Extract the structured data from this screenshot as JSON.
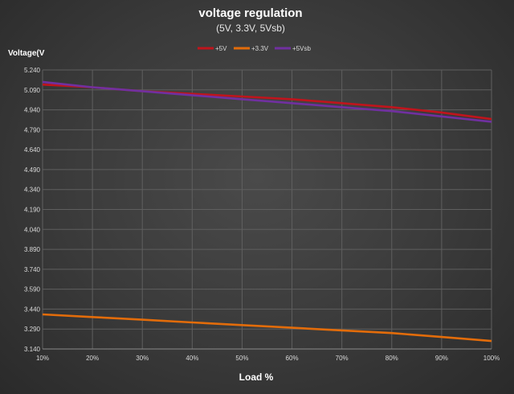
{
  "chart_data": {
    "type": "line",
    "title": "voltage regulation",
    "subtitle": "(5V, 3.3V, 5Vsb)",
    "ylabel": "Voltage(V",
    "xlabel": "Load %",
    "categories": [
      "10%",
      "20%",
      "30%",
      "40%",
      "50%",
      "60%",
      "70%",
      "80%",
      "90%",
      "100%"
    ],
    "yticks": [
      "5.240",
      "5.090",
      "4.940",
      "4.790",
      "4.640",
      "4.490",
      "4.340",
      "4.190",
      "4.040",
      "3.890",
      "3.740",
      "3.590",
      "3.440",
      "3.290",
      "3.140"
    ],
    "ylim": [
      3.14,
      5.24
    ],
    "grid": true,
    "legend_position": "top",
    "series": [
      {
        "name": "+5V",
        "color": "#c0141c",
        "values": [
          5.13,
          5.11,
          5.08,
          5.06,
          5.04,
          5.02,
          4.99,
          4.96,
          4.92,
          4.87
        ]
      },
      {
        "name": "+3.3V",
        "color": "#e36c0a",
        "values": [
          3.4,
          3.38,
          3.36,
          3.34,
          3.32,
          3.3,
          3.28,
          3.26,
          3.23,
          3.2
        ]
      },
      {
        "name": "+5Vsb",
        "color": "#7030a0",
        "values": [
          5.15,
          5.11,
          5.08,
          5.05,
          5.02,
          4.99,
          4.96,
          4.93,
          4.89,
          4.85
        ]
      }
    ]
  }
}
